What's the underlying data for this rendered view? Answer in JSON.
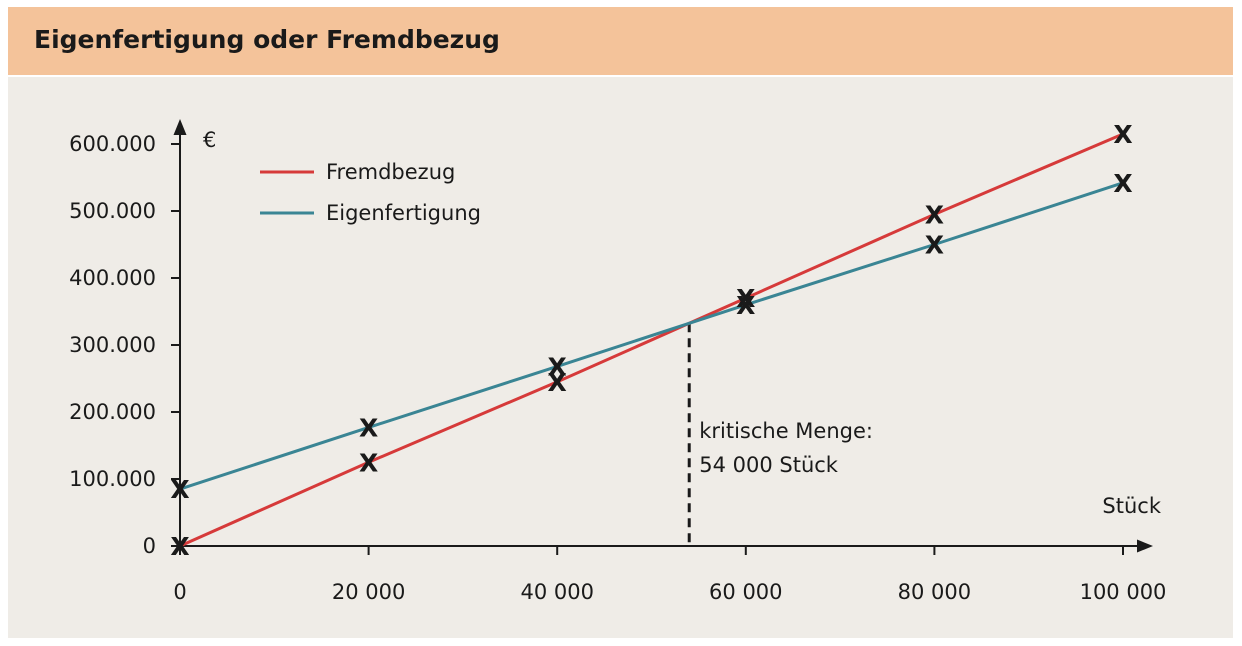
{
  "header": {
    "title": "Eigenfertigung oder Fremdbezug"
  },
  "chart_data": {
    "type": "line",
    "title": "Eigenfertigung oder Fremdbezug",
    "xlabel": "Stück",
    "ylabel": "€",
    "xlim": [
      0,
      100000
    ],
    "ylim": [
      0,
      600000
    ],
    "x_ticks": [
      0,
      20000,
      40000,
      60000,
      80000,
      100000
    ],
    "x_tick_labels": [
      "0",
      "20 000",
      "40 000",
      "60 000",
      "80 000",
      "100 000"
    ],
    "y_ticks": [
      0,
      100000,
      200000,
      300000,
      400000,
      500000,
      600000
    ],
    "y_tick_labels": [
      "0",
      "100.000",
      "200.000",
      "300.000",
      "400.000",
      "500.000",
      "600.000"
    ],
    "grid": false,
    "legend_position": "top-left",
    "series": [
      {
        "name": "Fremdbezug",
        "color": "#d63a3a",
        "x": [
          0,
          20000,
          40000,
          60000,
          80000,
          100000
        ],
        "y": [
          0,
          125000,
          245000,
          370000,
          495000,
          615000
        ]
      },
      {
        "name": "Eigenfertigung",
        "color": "#3a8594",
        "x": [
          0,
          20000,
          40000,
          60000,
          80000,
          100000
        ],
        "y": [
          85000,
          177000,
          268000,
          360000,
          450000,
          542000
        ]
      }
    ],
    "marker_symbol": "X",
    "annotation": {
      "x": 54000,
      "lines": [
        "kritische Menge:",
        "54 000 Stück"
      ]
    }
  }
}
